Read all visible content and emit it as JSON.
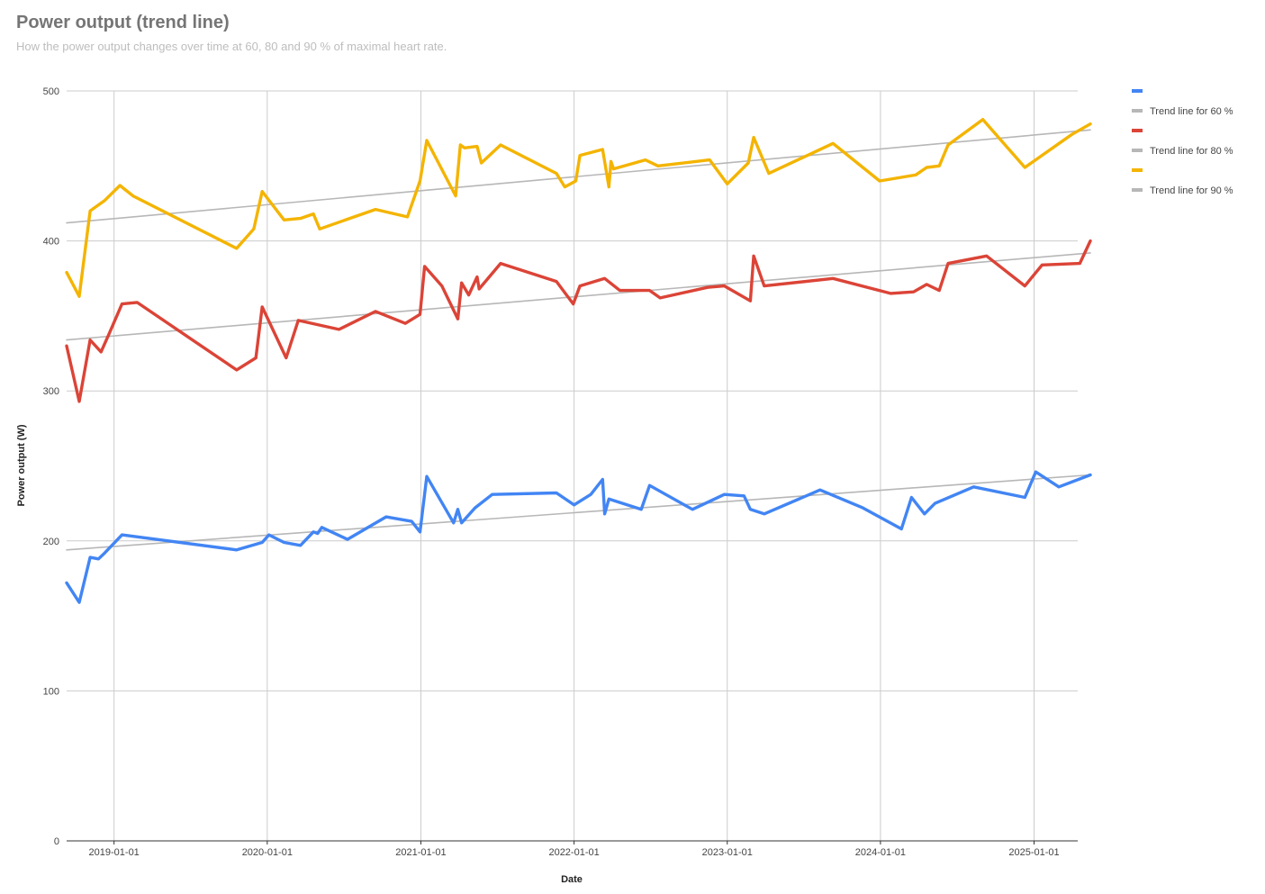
{
  "title": "Power output (trend line)",
  "subtitle": "How the power output changes over time at 60, 80 and 90 % of maximal heart rate.",
  "chart_data": {
    "type": "line",
    "xlabel": "Date",
    "ylabel": "Power output (W)",
    "ylim": [
      0,
      500
    ],
    "xlim": [
      "2018-09-10",
      "2025-04-15"
    ],
    "y_ticks": [
      0,
      100,
      200,
      300,
      400,
      500
    ],
    "x_ticks": [
      "2019-01-01",
      "2020-01-01",
      "2021-01-01",
      "2022-01-01",
      "2023-01-01",
      "2024-01-01",
      "2025-01-01"
    ],
    "grid": true,
    "legend_position": "right",
    "series": [
      {
        "name": "",
        "color": "#4285f4",
        "points": [
          [
            "2018-09-10",
            172
          ],
          [
            "2018-10-10",
            159
          ],
          [
            "2018-11-05",
            189
          ],
          [
            "2018-11-25",
            188
          ],
          [
            "2018-12-10",
            192
          ],
          [
            "2019-01-20",
            204
          ],
          [
            "2019-10-20",
            194
          ],
          [
            "2019-12-20",
            199
          ],
          [
            "2020-01-05",
            204
          ],
          [
            "2020-02-10",
            199
          ],
          [
            "2020-03-20",
            197
          ],
          [
            "2020-04-20",
            206
          ],
          [
            "2020-04-30",
            205
          ],
          [
            "2020-05-10",
            209
          ],
          [
            "2020-07-10",
            201
          ],
          [
            "2020-10-10",
            216
          ],
          [
            "2020-12-10",
            213
          ],
          [
            "2020-12-30",
            206
          ],
          [
            "2021-01-15",
            243
          ],
          [
            "2021-03-20",
            212
          ],
          [
            "2021-03-30",
            221
          ],
          [
            "2021-04-08",
            212
          ],
          [
            "2021-05-10",
            222
          ],
          [
            "2021-06-20",
            231
          ],
          [
            "2021-11-20",
            232
          ],
          [
            "2022-01-01",
            224
          ],
          [
            "2022-02-10",
            231
          ],
          [
            "2022-03-10",
            241
          ],
          [
            "2022-03-15",
            218
          ],
          [
            "2022-03-25",
            228
          ],
          [
            "2022-06-10",
            221
          ],
          [
            "2022-06-30",
            237
          ],
          [
            "2022-10-10",
            221
          ],
          [
            "2022-12-25",
            231
          ],
          [
            "2023-02-10",
            230
          ],
          [
            "2023-02-25",
            221
          ],
          [
            "2023-03-30",
            218
          ],
          [
            "2023-08-10",
            234
          ],
          [
            "2023-11-20",
            222
          ],
          [
            "2024-02-20",
            208
          ],
          [
            "2024-03-15",
            229
          ],
          [
            "2024-04-15",
            218
          ],
          [
            "2024-05-10",
            225
          ],
          [
            "2024-08-10",
            236
          ],
          [
            "2024-12-10",
            229
          ],
          [
            "2025-01-05",
            246
          ],
          [
            "2025-03-01",
            236
          ],
          [
            "2025-05-15",
            244
          ]
        ]
      },
      {
        "name": "Trend line for 60 %",
        "color": "#b7b7b7",
        "trend": true,
        "points": [
          [
            "2018-09-10",
            194
          ],
          [
            "2025-05-15",
            244
          ]
        ]
      },
      {
        "name": "",
        "color": "#db4437",
        "points": [
          [
            "2018-09-10",
            330
          ],
          [
            "2018-10-10",
            293
          ],
          [
            "2018-11-05",
            334
          ],
          [
            "2018-12-01",
            326
          ],
          [
            "2018-12-20",
            338
          ],
          [
            "2019-01-20",
            358
          ],
          [
            "2019-02-25",
            359
          ],
          [
            "2019-10-20",
            314
          ],
          [
            "2019-12-05",
            322
          ],
          [
            "2019-12-20",
            356
          ],
          [
            "2020-02-15",
            322
          ],
          [
            "2020-03-15",
            347
          ],
          [
            "2020-06-20",
            341
          ],
          [
            "2020-09-15",
            353
          ],
          [
            "2020-11-25",
            345
          ],
          [
            "2020-12-30",
            351
          ],
          [
            "2021-01-10",
            383
          ],
          [
            "2021-02-20",
            370
          ],
          [
            "2021-03-30",
            348
          ],
          [
            "2021-04-08",
            372
          ],
          [
            "2021-04-25",
            364
          ],
          [
            "2021-05-15",
            376
          ],
          [
            "2021-05-20",
            368
          ],
          [
            "2021-07-10",
            385
          ],
          [
            "2021-11-20",
            373
          ],
          [
            "2021-12-30",
            358
          ],
          [
            "2022-01-15",
            370
          ],
          [
            "2022-03-15",
            375
          ],
          [
            "2022-04-20",
            367
          ],
          [
            "2022-06-30",
            367
          ],
          [
            "2022-07-25",
            362
          ],
          [
            "2022-11-15",
            369
          ],
          [
            "2022-12-25",
            370
          ],
          [
            "2023-02-25",
            360
          ],
          [
            "2023-03-05",
            390
          ],
          [
            "2023-03-30",
            370
          ],
          [
            "2023-09-10",
            375
          ],
          [
            "2024-01-25",
            365
          ],
          [
            "2024-03-20",
            366
          ],
          [
            "2024-04-20",
            371
          ],
          [
            "2024-05-20",
            367
          ],
          [
            "2024-06-10",
            385
          ],
          [
            "2024-09-10",
            390
          ],
          [
            "2024-12-10",
            370
          ],
          [
            "2025-01-20",
            384
          ],
          [
            "2025-04-20",
            385
          ],
          [
            "2025-05-15",
            400
          ]
        ]
      },
      {
        "name": "Trend line for 80 %",
        "color": "#b7b7b7",
        "trend": true,
        "points": [
          [
            "2018-09-10",
            334
          ],
          [
            "2025-05-15",
            392
          ]
        ]
      },
      {
        "name": "",
        "color": "#f4b400",
        "points": [
          [
            "2018-09-10",
            379
          ],
          [
            "2018-10-10",
            363
          ],
          [
            "2018-11-05",
            420
          ],
          [
            "2018-12-10",
            427
          ],
          [
            "2019-01-15",
            437
          ],
          [
            "2019-02-15",
            430
          ],
          [
            "2019-10-20",
            395
          ],
          [
            "2019-11-30",
            408
          ],
          [
            "2019-12-20",
            433
          ],
          [
            "2020-02-10",
            414
          ],
          [
            "2020-03-20",
            415
          ],
          [
            "2020-04-20",
            418
          ],
          [
            "2020-05-05",
            408
          ],
          [
            "2020-09-15",
            421
          ],
          [
            "2020-11-30",
            416
          ],
          [
            "2020-12-30",
            440
          ],
          [
            "2021-01-15",
            467
          ],
          [
            "2021-03-25",
            430
          ],
          [
            "2021-04-05",
            464
          ],
          [
            "2021-04-15",
            462
          ],
          [
            "2021-05-15",
            463
          ],
          [
            "2021-05-25",
            452
          ],
          [
            "2021-07-10",
            464
          ],
          [
            "2021-11-20",
            445
          ],
          [
            "2021-12-10",
            436
          ],
          [
            "2022-01-05",
            440
          ],
          [
            "2022-01-15",
            457
          ],
          [
            "2022-03-10",
            461
          ],
          [
            "2022-03-25",
            436
          ],
          [
            "2022-03-30",
            453
          ],
          [
            "2022-04-05",
            448
          ],
          [
            "2022-06-20",
            454
          ],
          [
            "2022-07-20",
            450
          ],
          [
            "2022-11-20",
            454
          ],
          [
            "2023-01-01",
            438
          ],
          [
            "2023-02-20",
            452
          ],
          [
            "2023-03-05",
            469
          ],
          [
            "2023-04-10",
            445
          ],
          [
            "2023-09-10",
            465
          ],
          [
            "2023-12-30",
            440
          ],
          [
            "2024-03-25",
            444
          ],
          [
            "2024-04-20",
            449
          ],
          [
            "2024-05-20",
            450
          ],
          [
            "2024-06-10",
            464
          ],
          [
            "2024-09-01",
            481
          ],
          [
            "2024-12-10",
            449
          ],
          [
            "2025-04-01",
            471
          ],
          [
            "2025-05-15",
            478
          ]
        ]
      },
      {
        "name": "Trend line for 90 %",
        "color": "#b7b7b7",
        "trend": true,
        "points": [
          [
            "2018-09-10",
            412
          ],
          [
            "2025-05-15",
            474
          ]
        ]
      }
    ]
  }
}
